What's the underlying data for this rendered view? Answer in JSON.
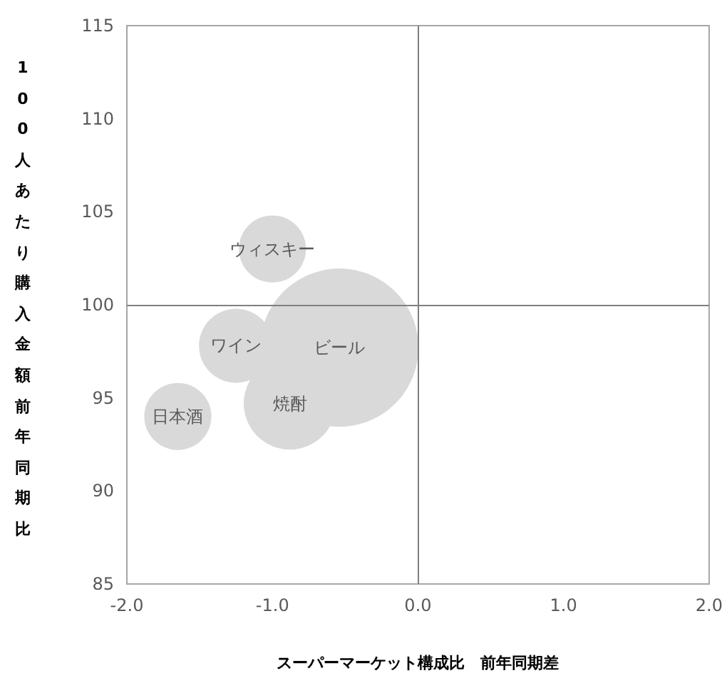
{
  "chart_data": {
    "type": "bubble",
    "xlabel": "スーパーマーケット構成比　前年同期差",
    "ylabel": "100人あたり購入金額前年同期比",
    "xlim": [
      -2,
      2
    ],
    "xticks": [
      {
        "value": -2,
        "label": "-2.0"
      },
      {
        "value": -1,
        "label": "-1.0"
      },
      {
        "value": 0,
        "label": "0.0"
      },
      {
        "value": 1,
        "label": "1.0"
      },
      {
        "value": 2,
        "label": "2.0"
      }
    ],
    "ylim": [
      85,
      115
    ],
    "yticks": [
      85,
      90,
      95,
      100,
      105,
      110,
      115
    ],
    "ref_lines": [
      {
        "axis": "x",
        "value": 0,
        "color": "#808080"
      },
      {
        "axis": "y",
        "value": 100,
        "color": "#808080"
      }
    ],
    "series": [
      {
        "name": "ウィスキー",
        "color": "#d9d9d9",
        "x": [
          -1.0
        ],
        "values": [
          103.0
        ],
        "sizes": [
          0.18
        ]
      },
      {
        "name": "ワイン",
        "color": "#d9d9d9",
        "x": [
          -1.25
        ],
        "values": [
          97.8
        ],
        "sizes": [
          0.22
        ]
      },
      {
        "name": "ビール",
        "color": "#d9d9d9",
        "x": [
          -0.54
        ],
        "values": [
          97.7
        ],
        "sizes": [
          1
        ]
      },
      {
        "name": "焼酎",
        "color": "#d9d9d9",
        "x": [
          -0.88
        ],
        "values": [
          94.7
        ],
        "sizes": [
          0.34
        ]
      },
      {
        "name": "日本酒",
        "color": "#d9d9d9",
        "x": [
          -1.65
        ],
        "values": [
          94.0
        ],
        "sizes": [
          0.18
        ]
      }
    ]
  }
}
